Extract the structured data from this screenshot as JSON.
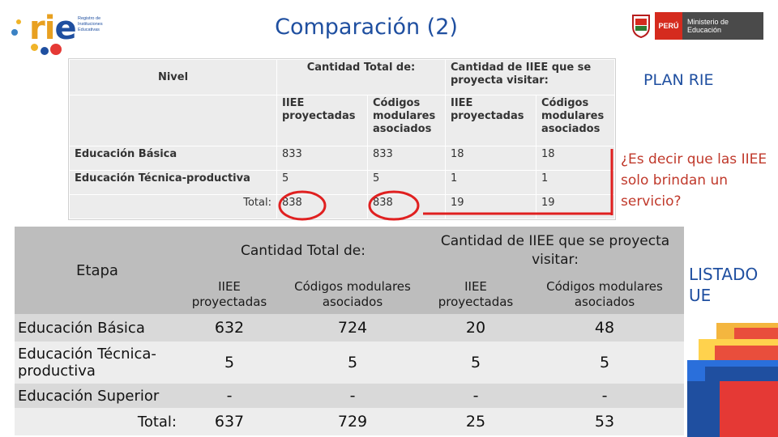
{
  "header": {
    "title": "Comparación (2)",
    "logo_word": "rie",
    "logo_sub": "Registro de Instituciones Educativas",
    "minedu_flag": "PERÚ",
    "minedu_name": "Ministerio de Educación"
  },
  "scan": {
    "nivel": "Nivel",
    "group1": "Cantidad Total de:",
    "group2": "Cantidad de IIEE que se proyecta visitar:",
    "col1": "IIEE proyectadas",
    "col2": "Códigos modulares asociados",
    "col3": "IIEE proyectadas",
    "col4": "Códigos modulares asociados",
    "rows": [
      {
        "label": "Educación Básica",
        "v": [
          "833",
          "833",
          "18",
          "18"
        ]
      },
      {
        "label": "Educación Técnica-productiva",
        "v": [
          "5",
          "5",
          "1",
          "1"
        ]
      },
      {
        "label": "Total:",
        "v": [
          "838",
          "838",
          "19",
          "19"
        ]
      }
    ]
  },
  "annotations": {
    "plan": "PLAN RIE",
    "question": "¿Es decir que las IIEE solo brindan un servicio?",
    "listado": "LISTADO UE",
    "accent_red": "#e02020"
  },
  "table": {
    "etapa": "Etapa",
    "group1": "Cantidad Total de:",
    "group2": "Cantidad de IIEE que se proyecta visitar:",
    "col1": "IIEE proyectadas",
    "col2": "Códigos modulares asociados",
    "col3": "IIEE proyectadas",
    "col4": "Códigos modulares asociados",
    "rows": [
      {
        "label": "Educación Básica",
        "v": [
          "632",
          "724",
          "20",
          "48"
        ]
      },
      {
        "label": "Educación Técnica-productiva",
        "v": [
          "5",
          "5",
          "5",
          "5"
        ]
      },
      {
        "label": "Educación Superior",
        "v": [
          "-",
          "-",
          "-",
          "-"
        ]
      },
      {
        "label": "Total:",
        "v": [
          "637",
          "729",
          "25",
          "53"
        ]
      }
    ]
  }
}
